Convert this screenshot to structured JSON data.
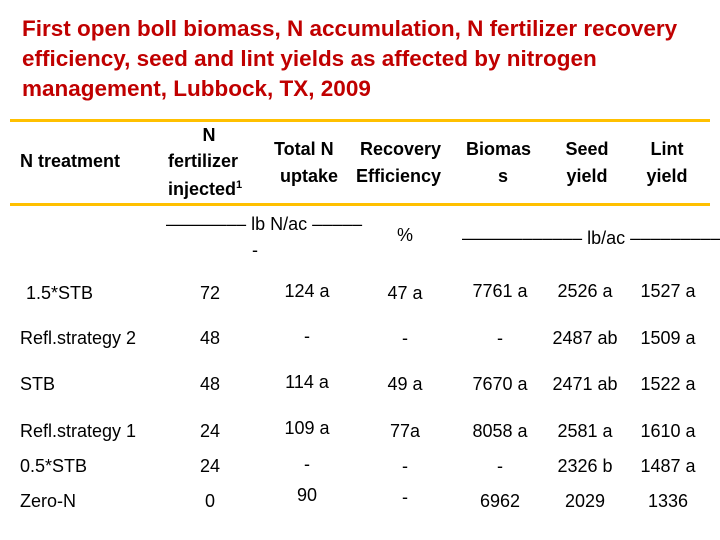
{
  "title": "First open boll biomass, N accumulation, N fertilizer recovery efficiency, seed and lint yields as affected by nitrogen management, Lubbock, TX, 2009",
  "columns": {
    "treatment": "N treatment",
    "fertilizer": {
      "line1": "N",
      "line2": "fertilizer",
      "line3": "injected",
      "superscript": "1"
    },
    "total_n": {
      "line1": "Total N",
      "line2": "uptake"
    },
    "recovery": {
      "line1": "Recovery",
      "line2": "Efficiency"
    },
    "biomass": {
      "line1": "Biomas",
      "line2": "s"
    },
    "seed": {
      "line1": "Seed",
      "line2": "yield"
    },
    "lint": {
      "line1": "Lint",
      "line2": "yield"
    }
  },
  "units": {
    "lb_n_ac": "–––––––– lb N/ac –––––",
    "lb_n_ac_cont": "-",
    "percent": "%",
    "lb_ac": "–––––––––––– lb/ac ––––––––––"
  },
  "rows": [
    {
      "treatment": "1.5*STB",
      "fertilizer": "72",
      "total_n": "124 a",
      "recovery": "47 a",
      "biomass": "7761 a",
      "seed": "2526 a",
      "lint": "1527 a"
    },
    {
      "treatment": "Refl.strategy 2",
      "fertilizer": "48",
      "total_n": "-",
      "recovery": "-",
      "biomass": "-",
      "seed": "2487 ab",
      "lint": "1509 a"
    },
    {
      "treatment": "STB",
      "fertilizer": "48",
      "total_n": "114 a",
      "recovery": "49 a",
      "biomass": "7670 a",
      "seed": "2471 ab",
      "lint": "1522 a"
    },
    {
      "treatment": "Refl.strategy 1",
      "fertilizer": "24",
      "total_n": "109 a",
      "recovery": "77a",
      "biomass": "8058 a",
      "seed": "2581 a",
      "lint": "1610 a"
    },
    {
      "treatment": "0.5*STB",
      "fertilizer": "24",
      "total_n": "-",
      "recovery": "-",
      "biomass": "-",
      "seed": "2326 b",
      "lint": "1487 a"
    },
    {
      "treatment": "Zero-N",
      "fertilizer": "0",
      "total_n": "90",
      "recovery": "-",
      "biomass": "6962",
      "seed": "2029",
      "lint": "1336"
    }
  ]
}
